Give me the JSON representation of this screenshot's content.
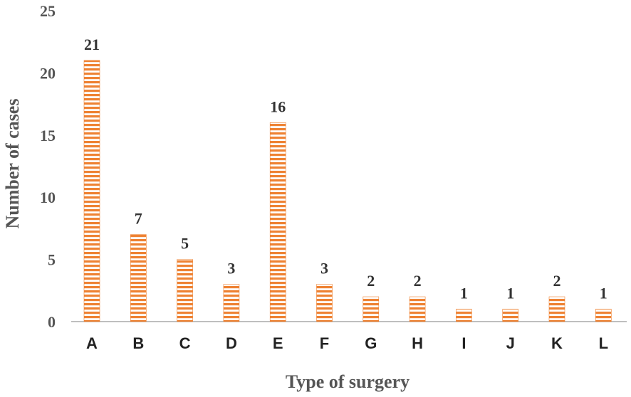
{
  "chart_data": {
    "type": "bar",
    "categories": [
      "A",
      "B",
      "C",
      "D",
      "E",
      "F",
      "G",
      "H",
      "I",
      "J",
      "K",
      "L"
    ],
    "values": [
      21,
      7,
      5,
      3,
      16,
      3,
      2,
      2,
      1,
      1,
      2,
      1
    ],
    "data_labels": [
      "21",
      "7",
      "5",
      "3",
      "16",
      "3",
      "2",
      "2",
      "1",
      "1",
      "2",
      "1"
    ],
    "xlabel": "Type of surgery",
    "ylabel": "Number of cases",
    "ylim": [
      0,
      25
    ],
    "yticks": [
      "0",
      "5",
      "10",
      "15",
      "20",
      "25"
    ],
    "grid": false,
    "legend": "none",
    "colors": {
      "bar_stripe": "#EE8233",
      "bar_background": "#FFFFFF",
      "axis_line": "#BFBFBF"
    }
  }
}
